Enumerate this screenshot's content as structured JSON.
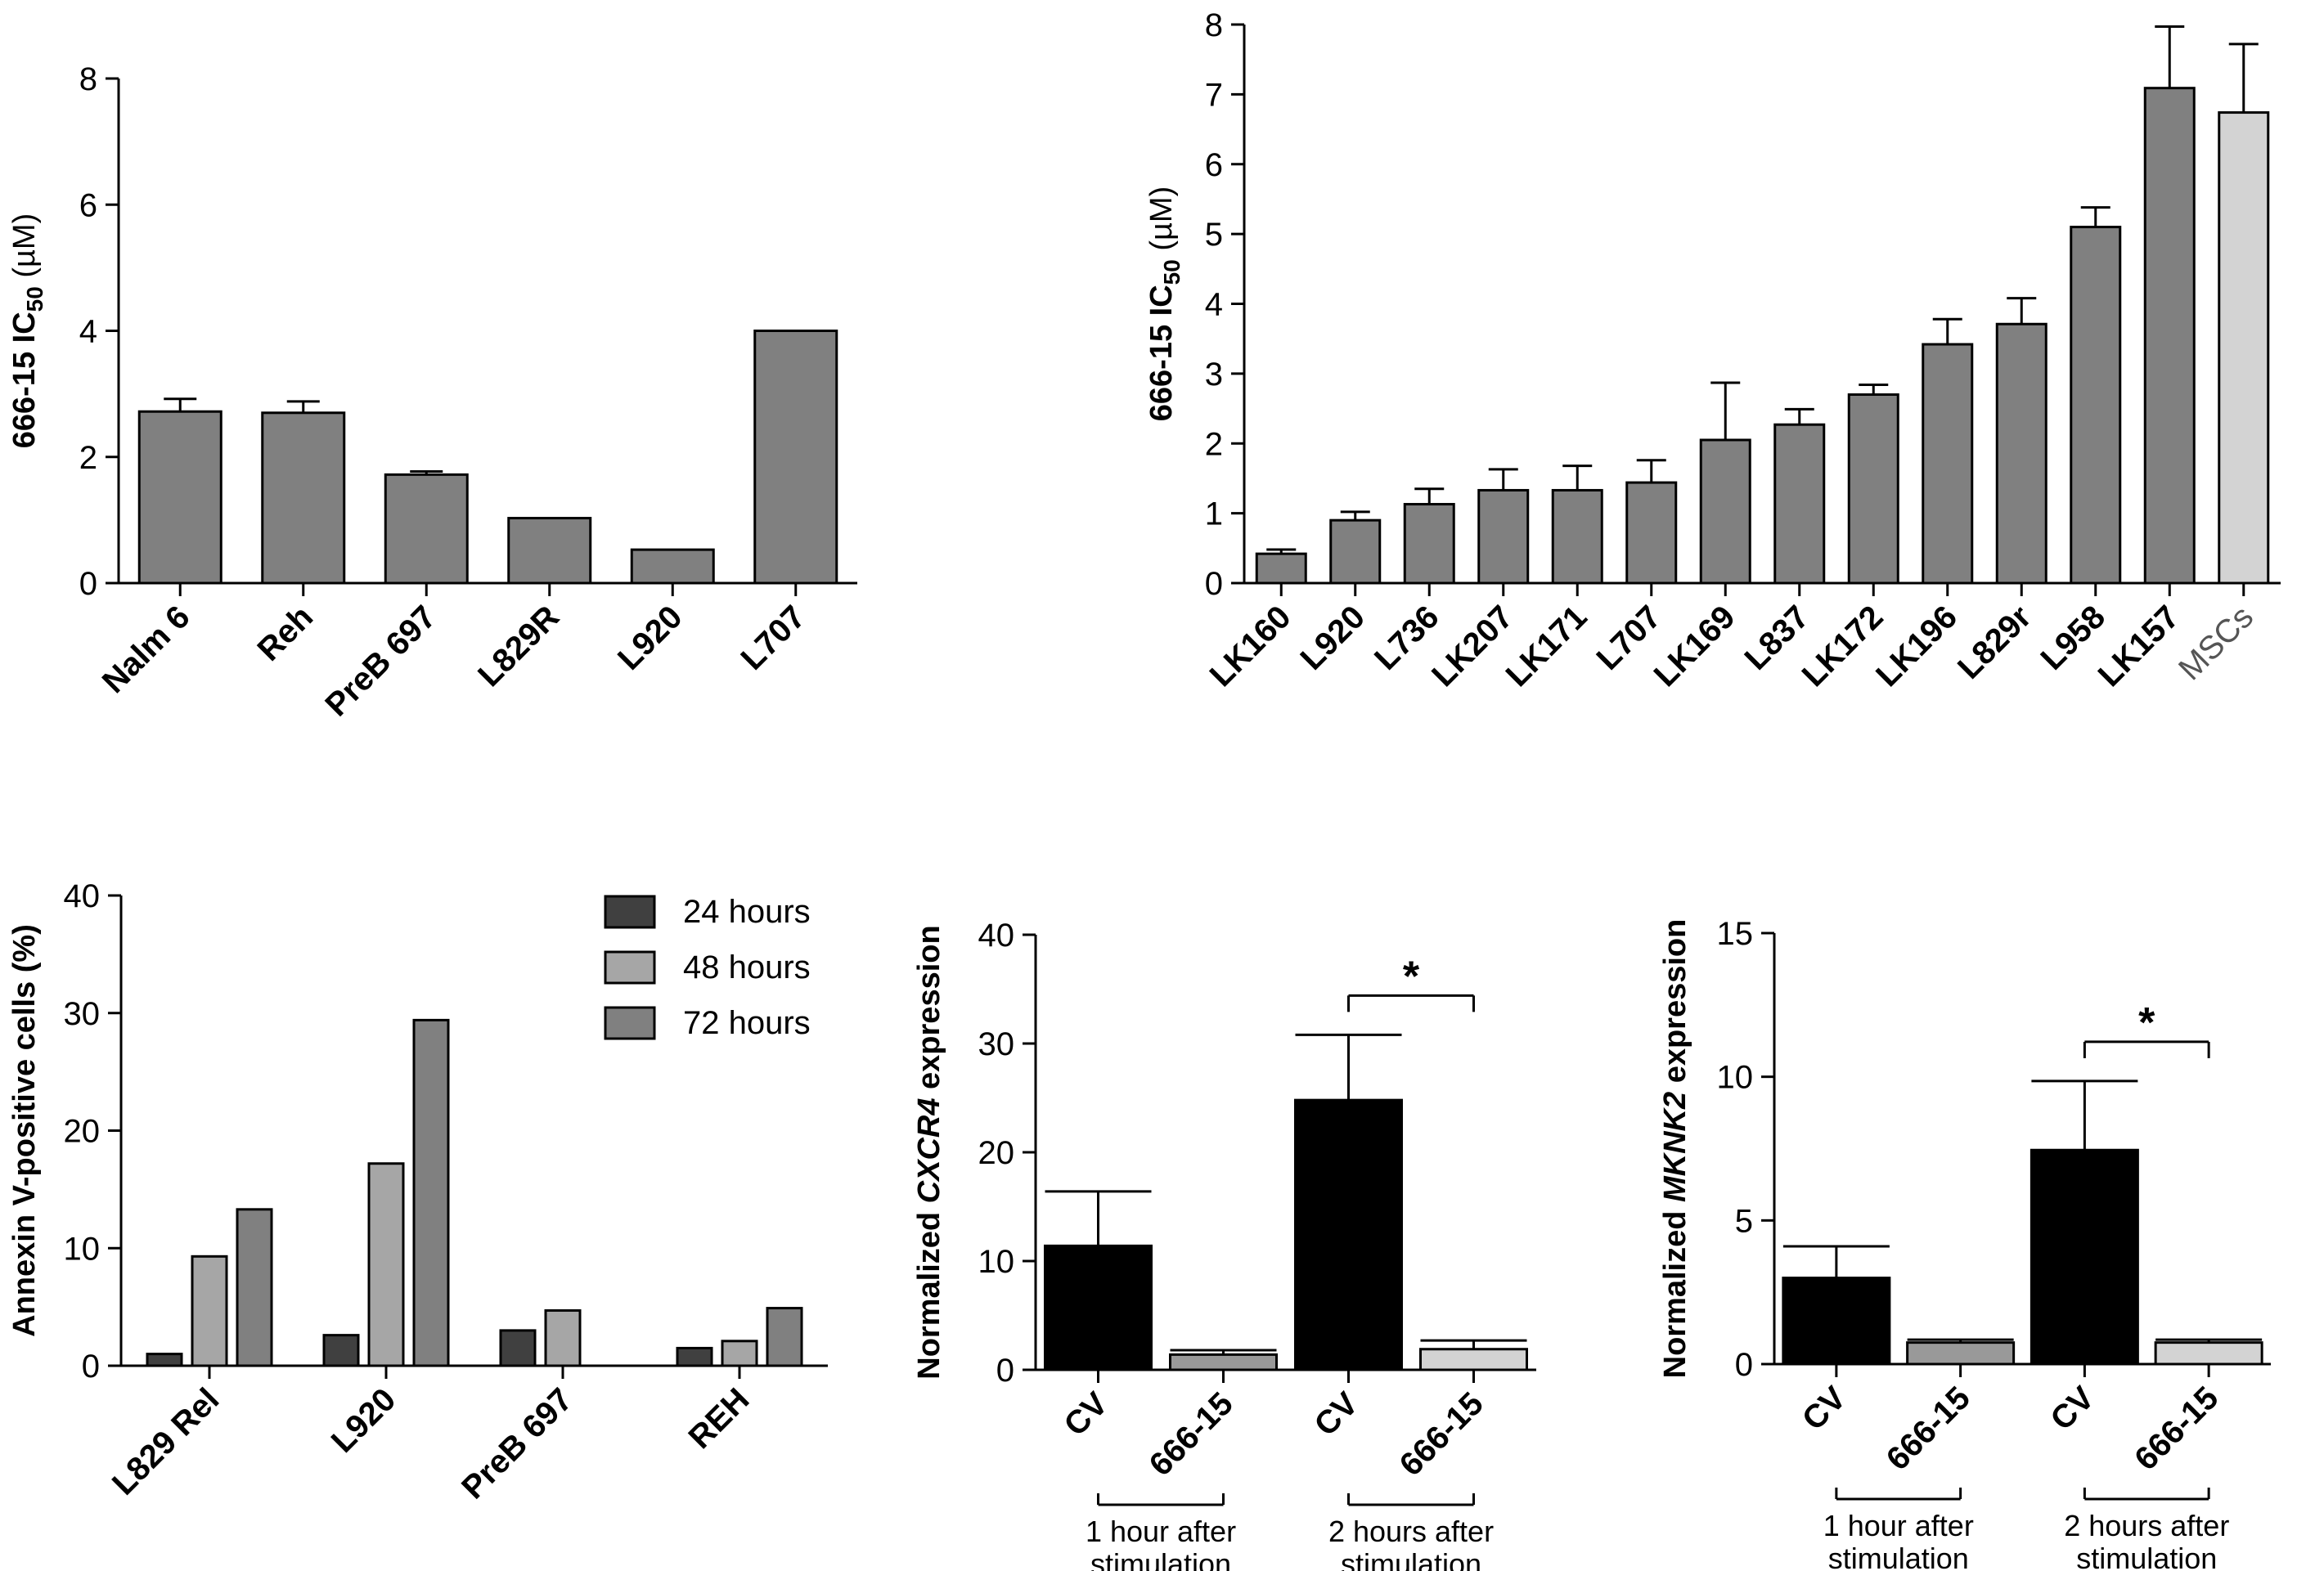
{
  "chart_data": [
    {
      "type": "bar",
      "id": "a",
      "categories": [
        "Nalm 6",
        "Reh",
        "PreB 697",
        "L829R",
        "L920",
        "L707"
      ],
      "values": [
        2.72,
        2.7,
        1.72,
        1.03,
        0.53,
        4.0
      ],
      "errors": [
        0.2,
        0.18,
        0.05,
        0,
        0,
        0
      ],
      "ylabel_main": "666-15 IC",
      "ylabel_sub": "50",
      "ylabel_unit": " (µM)",
      "ylim": [
        0,
        8
      ],
      "yticks": [
        0,
        2,
        4,
        6,
        8
      ],
      "bar_color": "#808080"
    },
    {
      "type": "bar",
      "id": "b",
      "categories": [
        "LK160",
        "L920",
        "L736",
        "LK207",
        "LK171",
        "L707",
        "LK169",
        "L837",
        "LK172",
        "LK196",
        "L829r",
        "L958",
        "LK157",
        "MSCs"
      ],
      "values": [
        0.42,
        0.9,
        1.13,
        1.33,
        1.33,
        1.44,
        2.05,
        2.27,
        2.7,
        3.42,
        3.71,
        5.1,
        7.09,
        6.74
      ],
      "errors": [
        0.06,
        0.12,
        0.22,
        0.3,
        0.35,
        0.32,
        0.82,
        0.22,
        0.14,
        0.36,
        0.37,
        0.28,
        0.88,
        0.98
      ],
      "bar_colors": [
        "#808080",
        "#808080",
        "#808080",
        "#808080",
        "#808080",
        "#808080",
        "#808080",
        "#808080",
        "#808080",
        "#808080",
        "#808080",
        "#808080",
        "#808080",
        "#d3d3d3"
      ],
      "ylabel_main": "666-15 IC",
      "ylabel_sub": "50",
      "ylabel_unit": " (µM)",
      "ylim": [
        0,
        8
      ],
      "yticks": [
        0,
        1,
        2,
        3,
        4,
        5,
        6,
        7,
        8
      ]
    },
    {
      "type": "bar",
      "id": "c",
      "categories": [
        "L829 Rel",
        "L920",
        "PreB 697",
        "REH"
      ],
      "series": [
        {
          "name": "24 hours",
          "color": "#404040",
          "values": [
            1.0,
            2.6,
            3.0,
            1.5
          ]
        },
        {
          "name": "48 hours",
          "color": "#a6a6a6",
          "values": [
            9.3,
            17.2,
            4.7,
            2.1
          ]
        },
        {
          "name": "72 hours",
          "color": "#808080",
          "values": [
            13.3,
            29.4,
            null,
            4.9
          ]
        }
      ],
      "ylabel": "Annexin V-positive cells (%)",
      "ylim": [
        0,
        40
      ],
      "yticks": [
        0,
        10,
        20,
        30,
        40
      ],
      "legend_position": "top-right"
    },
    {
      "type": "bar",
      "id": "d",
      "categories": [
        "CV",
        "666-15",
        "CV",
        "666-15"
      ],
      "values": [
        11.4,
        1.4,
        24.8,
        1.9
      ],
      "errors": [
        5.0,
        0.4,
        6.0,
        0.8
      ],
      "bar_colors": [
        "#000000",
        "#999999",
        "#000000",
        "#d3d3d3"
      ],
      "groups": [
        {
          "line1": "1 hour after",
          "line2": "stimulation"
        },
        {
          "line1": "2 hours after",
          "line2": "stimulation"
        }
      ],
      "ylabel_pre": "Normalized ",
      "ylabel_gene": "CXCR4",
      "ylabel_post": " expression",
      "significance": "*",
      "ylim": [
        0,
        40
      ],
      "yticks": [
        0,
        10,
        20,
        30,
        40
      ]
    },
    {
      "type": "bar",
      "id": "e",
      "categories": [
        "CV",
        "666-15",
        "CV",
        "666-15"
      ],
      "values": [
        3.0,
        0.75,
        7.45,
        0.75
      ],
      "errors": [
        1.1,
        0.1,
        2.4,
        0.1
      ],
      "bar_colors": [
        "#000000",
        "#999999",
        "#000000",
        "#d3d3d3"
      ],
      "groups": [
        {
          "line1": "1 hour after",
          "line2": "stimulation"
        },
        {
          "line1": "2 hours after",
          "line2": "stimulation"
        }
      ],
      "ylabel_pre": "Normalized ",
      "ylabel_gene": "MKNK2",
      "ylabel_post": " expression",
      "significance": "*",
      "ylim": [
        0,
        15
      ],
      "yticks": [
        0,
        5,
        10,
        15
      ]
    }
  ]
}
